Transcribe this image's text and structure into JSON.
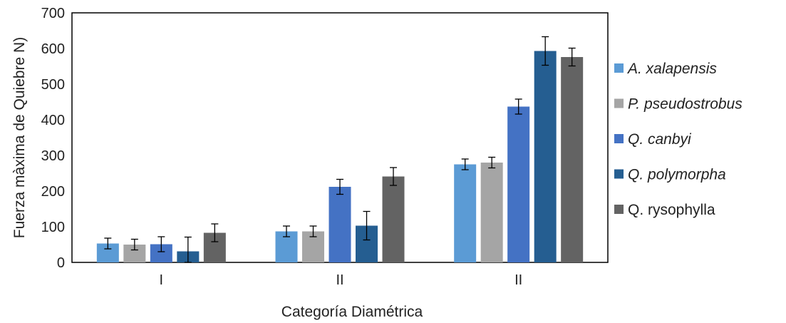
{
  "chart_data": {
    "type": "bar",
    "categories": [
      "I",
      "II",
      "II"
    ],
    "series": [
      {
        "name": "A. xalapensis",
        "italic": true,
        "color": "#5b9bd5",
        "values": [
          53,
          87,
          275
        ],
        "errors": [
          15,
          15,
          15
        ]
      },
      {
        "name": "P. pseudostrobus",
        "italic": true,
        "color": "#a5a5a5",
        "values": [
          50,
          87,
          280
        ],
        "errors": [
          15,
          15,
          15
        ]
      },
      {
        "name": "Q. canbyi",
        "italic": true,
        "color": "#4472c4",
        "values": [
          51,
          212,
          437
        ],
        "errors": [
          21,
          21,
          21
        ]
      },
      {
        "name": "Q. polymorpha",
        "italic": true,
        "color": "#255e91",
        "values": [
          31,
          103,
          593
        ],
        "errors": [
          40,
          40,
          40
        ]
      },
      {
        "name": "Q. rysophylla",
        "italic": false,
        "color": "#636363",
        "values": [
          83,
          241,
          576
        ],
        "errors": [
          25,
          25,
          25
        ]
      }
    ],
    "xlabel": "Categoría Diamétrica",
    "ylabel": "Fuerza màxima de Quiebre N)",
    "ylim": [
      0,
      700
    ],
    "yticks": [
      0,
      100,
      200,
      300,
      400,
      500,
      600,
      700
    ],
    "grid": false,
    "legend": "right"
  }
}
